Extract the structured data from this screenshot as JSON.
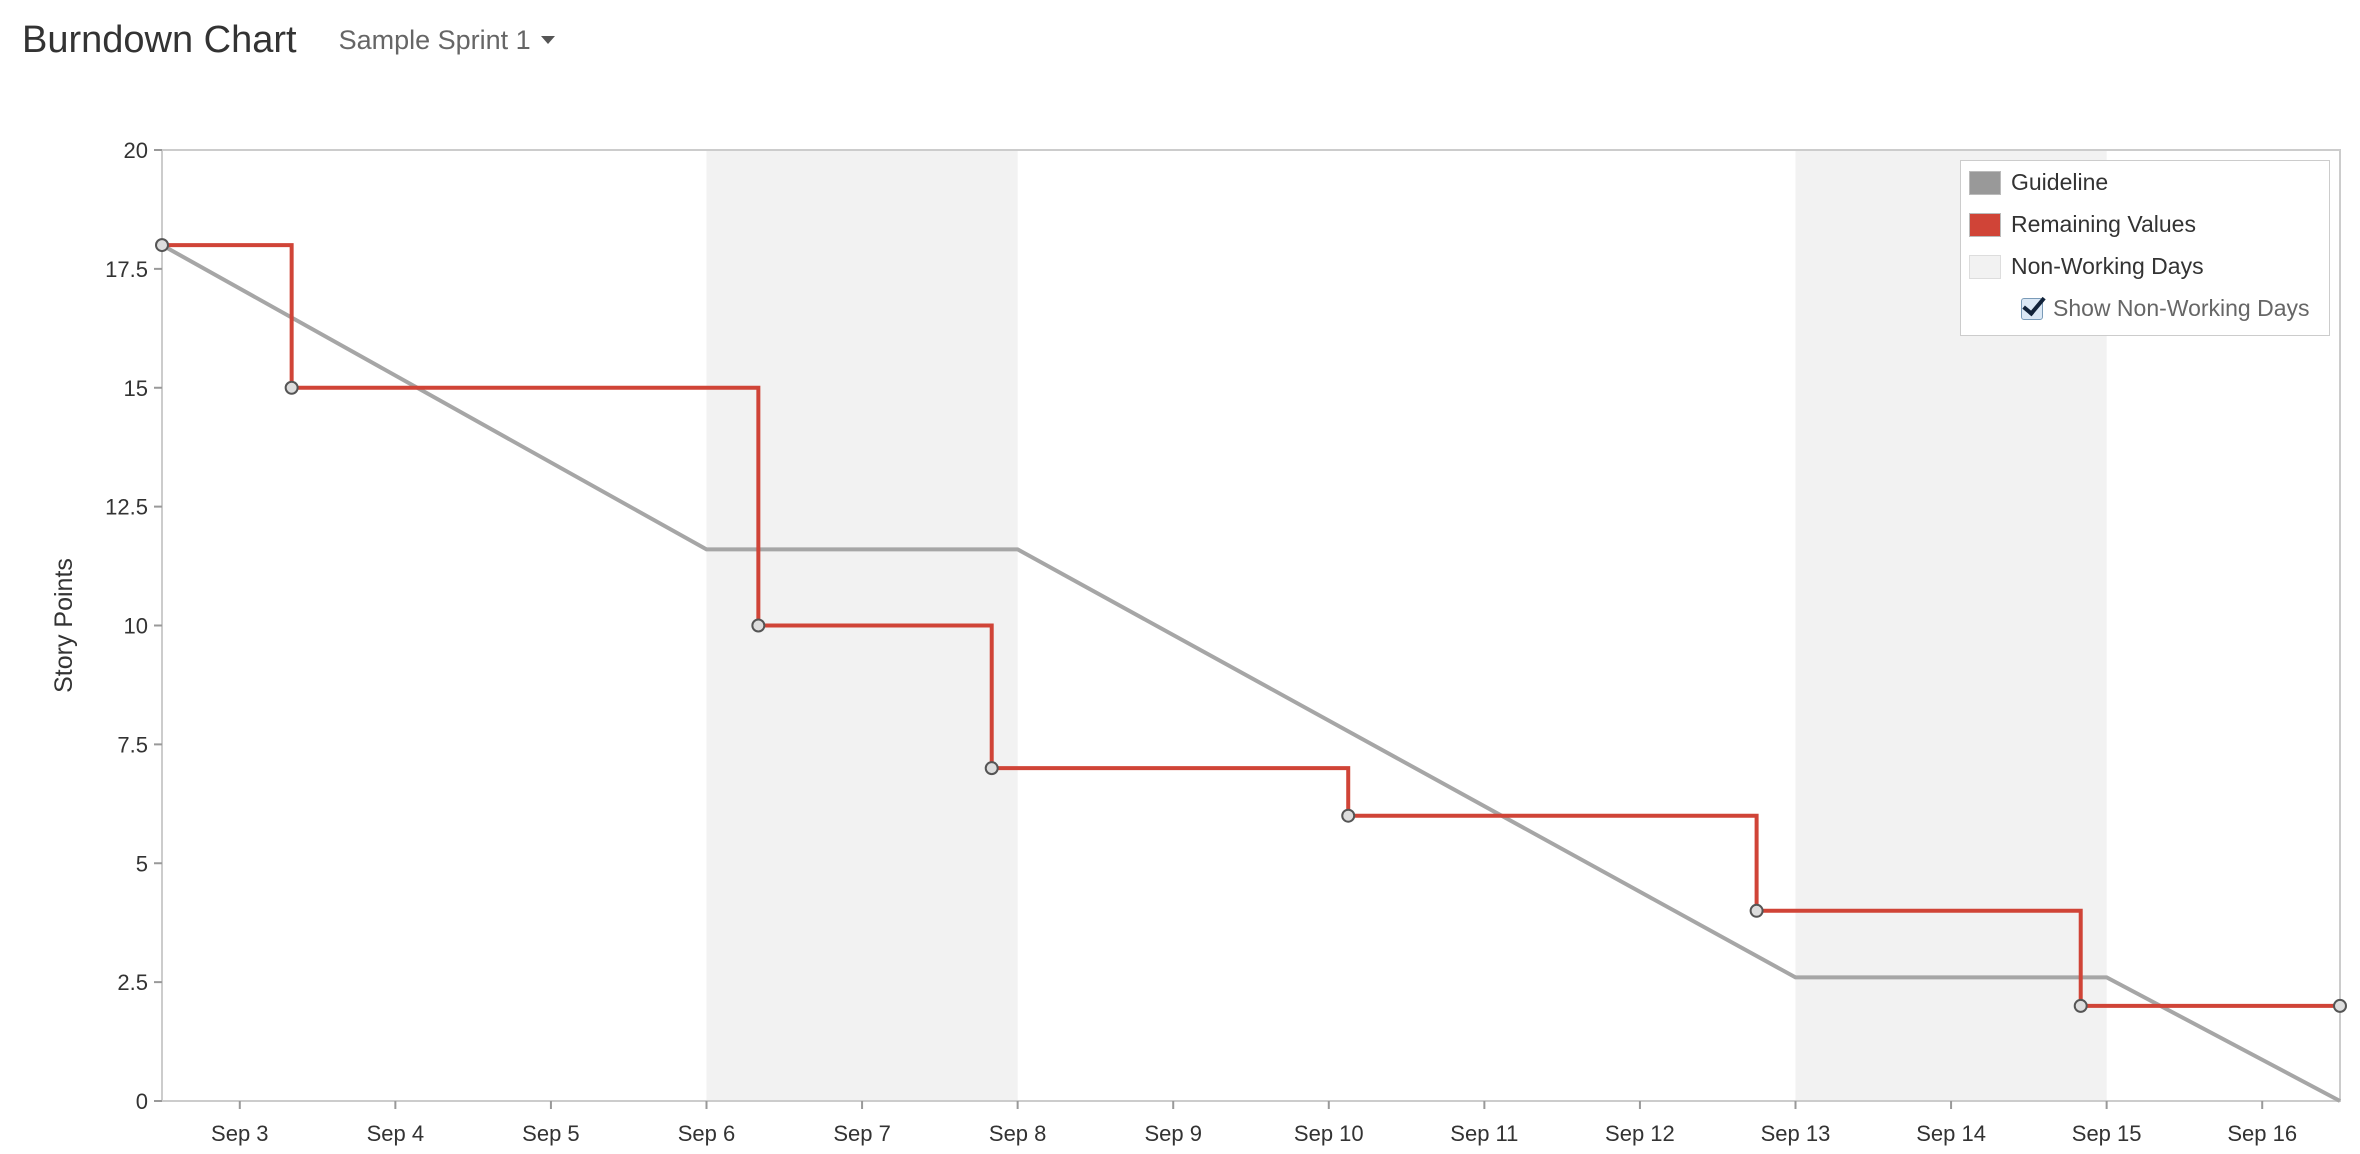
{
  "header": {
    "title": "Burndown Chart",
    "sprint_label": "Sample Sprint 1"
  },
  "legend": {
    "items": [
      {
        "label": "Guideline",
        "color": "#999999"
      },
      {
        "label": "Remaining Values",
        "color": "#d04437"
      },
      {
        "label": "Non-Working Days",
        "color": "#f2f2f2"
      }
    ],
    "toggle_label": "Show Non-Working Days",
    "toggle_checked": true
  },
  "chart_data": {
    "type": "line",
    "ylabel": "Story Points",
    "ylim": [
      0,
      20
    ],
    "yticks": [
      "0",
      "2.5",
      "5",
      "7.5",
      "10",
      "12.5",
      "15",
      "17.5",
      "20"
    ],
    "xlim": [
      "Sep 2 12:00",
      "Sep 16 12:00"
    ],
    "xticks": [
      "Sep 3",
      "Sep 4",
      "Sep 5",
      "Sep 6",
      "Sep 7",
      "Sep 8",
      "Sep 9",
      "Sep 10",
      "Sep 11",
      "Sep 12",
      "Sep 13",
      "Sep 14",
      "Sep 15",
      "Sep 16"
    ],
    "non_working_days": [
      [
        "Sep 6",
        "Sep 8"
      ],
      [
        "Sep 13",
        "Sep 15"
      ]
    ],
    "series": [
      {
        "name": "Guideline",
        "color": "#a6a6a6",
        "step": false,
        "points": [
          {
            "x": "Sep 2 12:00",
            "y": 18
          },
          {
            "x": "Sep 6",
            "y": 11.6
          },
          {
            "x": "Sep 8",
            "y": 11.6
          },
          {
            "x": "Sep 13",
            "y": 2.6
          },
          {
            "x": "Sep 15",
            "y": 2.6
          },
          {
            "x": "Sep 16 12:00",
            "y": 0
          }
        ]
      },
      {
        "name": "Remaining Values",
        "color": "#d04437",
        "step": true,
        "points": [
          {
            "x": "Sep 2 12:00",
            "y": 18
          },
          {
            "x": "Sep 3 08:00",
            "y": 15
          },
          {
            "x": "Sep 6 08:00",
            "y": 10
          },
          {
            "x": "Sep 7 20:00",
            "y": 7
          },
          {
            "x": "Sep 10 03:00",
            "y": 6
          },
          {
            "x": "Sep 12 18:00",
            "y": 4
          },
          {
            "x": "Sep 14 20:00",
            "y": 2
          },
          {
            "x": "Sep 16 12:00",
            "y": 2
          }
        ]
      }
    ]
  }
}
